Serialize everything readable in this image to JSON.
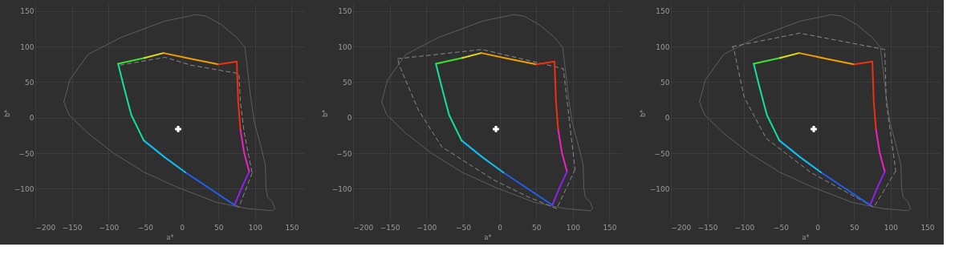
{
  "chart_data": [
    {
      "type": "line",
      "xlabel": "a*",
      "ylabel": "b*",
      "xlim": [
        -200,
        167
      ],
      "ylim": [
        -147,
        160
      ],
      "xticks": [
        -200,
        -150,
        -100,
        -50,
        0,
        50,
        100,
        150
      ],
      "yticks": [
        -100,
        -50,
        0,
        50,
        100,
        150
      ],
      "grid": true,
      "series": [
        {
          "color": "#5e5e5e",
          "line_style": "solid",
          "x": [
            -161,
            -153,
            -128,
            -83,
            -23,
            19,
            33,
            54,
            75,
            86,
            89,
            94,
            99,
            108,
            114,
            115,
            117,
            124,
            127
          ],
          "values": [
            22,
            53,
            89,
            113,
            136,
            145,
            143,
            131,
            113,
            99,
            74,
            29,
            -6,
            -41,
            -66,
            -99,
            -112,
            -119,
            -128
          ]
        },
        {
          "color": "#5e5e5e",
          "line_style": "solid",
          "x": [
            127,
            124,
            89,
            47,
            -6,
            -51,
            -93,
            -128,
            -154,
            -161
          ],
          "values": [
            -128,
            -131,
            -128,
            -119,
            -98,
            -77,
            -50,
            -22,
            4,
            22
          ]
        },
        {
          "color": "#8a8a8a",
          "line_style": "dashed",
          "x": [
            -84,
            -23,
            12,
            78,
            80,
            85,
            96
          ],
          "values": [
            74,
            85,
            74,
            62,
            22,
            -20,
            -78
          ]
        },
        {
          "color": "#8a8a8a",
          "line_style": "dashed",
          "x": [
            96,
            78,
            72
          ],
          "values": [
            -78,
            -126,
            -123
          ]
        },
        {
          "color": "#40e030",
          "line_style": "solid",
          "x": [
            -87,
            -51
          ],
          "values": [
            76,
            84
          ]
        },
        {
          "color": "#e0e010",
          "line_style": "solid",
          "x": [
            -51,
            -25
          ],
          "values": [
            84,
            91
          ]
        },
        {
          "color": "#f0a000",
          "line_style": "solid",
          "x": [
            -25,
            12,
            50
          ],
          "values": [
            91,
            83,
            75
          ]
        },
        {
          "color": "#f03010",
          "line_style": "solid",
          "x": [
            50,
            75,
            77,
            80
          ],
          "values": [
            75,
            79,
            22,
            -17
          ]
        },
        {
          "color": "#f020c0",
          "line_style": "solid",
          "x": [
            80,
            85,
            92
          ],
          "values": [
            -17,
            -49,
            -76
          ]
        },
        {
          "color": "#9020f0",
          "line_style": "solid",
          "x": [
            92,
            82,
            72
          ],
          "values": [
            -76,
            -98,
            -123
          ]
        },
        {
          "color": "#2060f0",
          "line_style": "solid",
          "x": [
            72,
            40,
            5
          ],
          "values": [
            -123,
            -101,
            -77
          ]
        },
        {
          "color": "#10c0f0",
          "line_style": "solid",
          "x": [
            5,
            -23,
            -52
          ],
          "values": [
            -77,
            -56,
            -32
          ]
        },
        {
          "color": "#10e0a0",
          "line_style": "solid",
          "x": [
            -52,
            -69,
            -79,
            -87
          ],
          "values": [
            -32,
            4,
            43,
            76
          ]
        },
        {
          "type": "scatter",
          "marker": "cross",
          "color": "#ffffff",
          "x": [
            -5
          ],
          "values": [
            -16
          ]
        }
      ]
    },
    {
      "type": "line",
      "xlabel": "a*",
      "ylabel": "b*",
      "xlim": [
        -200,
        167
      ],
      "ylim": [
        -147,
        160
      ],
      "xticks": [
        -200,
        -150,
        -100,
        -50,
        0,
        50,
        100,
        150
      ],
      "yticks": [
        -100,
        -50,
        0,
        50,
        100,
        150
      ],
      "grid": true,
      "series": [
        {
          "color": "#5e5e5e",
          "line_style": "solid",
          "x": [
            -161,
            -153,
            -128,
            -83,
            -23,
            19,
            33,
            54,
            75,
            86,
            89,
            94,
            99,
            108,
            114,
            115,
            117,
            124,
            127
          ],
          "values": [
            22,
            53,
            89,
            113,
            136,
            145,
            143,
            131,
            113,
            99,
            74,
            29,
            -6,
            -41,
            -66,
            -99,
            -112,
            -119,
            -128
          ]
        },
        {
          "color": "#5e5e5e",
          "line_style": "solid",
          "x": [
            127,
            124,
            89,
            47,
            -6,
            -51,
            -93,
            -128,
            -154,
            -161
          ],
          "values": [
            -128,
            -131,
            -128,
            -119,
            -98,
            -77,
            -50,
            -22,
            4,
            22
          ]
        },
        {
          "color": "#8a8a8a",
          "line_style": "dashed",
          "x": [
            -139,
            -24,
            87,
            103
          ],
          "values": [
            83,
            96,
            69,
            -73
          ]
        },
        {
          "color": "#8a8a8a",
          "line_style": "dashed",
          "x": [
            103,
            78,
            40,
            -9,
            -79,
            -111,
            -137,
            -139
          ],
          "values": [
            -73,
            -128,
            -112,
            -87,
            -41,
            11,
            74,
            83
          ]
        },
        {
          "color": "#40e030",
          "line_style": "solid",
          "x": [
            -87,
            -51
          ],
          "values": [
            76,
            84
          ]
        },
        {
          "color": "#e0e010",
          "line_style": "solid",
          "x": [
            -51,
            -25
          ],
          "values": [
            84,
            91
          ]
        },
        {
          "color": "#f0a000",
          "line_style": "solid",
          "x": [
            -25,
            12,
            50
          ],
          "values": [
            91,
            83,
            75
          ]
        },
        {
          "color": "#f03010",
          "line_style": "solid",
          "x": [
            50,
            75,
            77,
            80
          ],
          "values": [
            75,
            79,
            22,
            -17
          ]
        },
        {
          "color": "#f020c0",
          "line_style": "solid",
          "x": [
            80,
            85,
            92
          ],
          "values": [
            -17,
            -49,
            -76
          ]
        },
        {
          "color": "#9020f0",
          "line_style": "solid",
          "x": [
            92,
            82,
            72
          ],
          "values": [
            -76,
            -98,
            -123
          ]
        },
        {
          "color": "#2060f0",
          "line_style": "solid",
          "x": [
            72,
            40,
            5
          ],
          "values": [
            -123,
            -101,
            -77
          ]
        },
        {
          "color": "#10c0f0",
          "line_style": "solid",
          "x": [
            5,
            -23,
            -52
          ],
          "values": [
            -77,
            -56,
            -32
          ]
        },
        {
          "color": "#10e0a0",
          "line_style": "solid",
          "x": [
            -52,
            -69,
            -79,
            -87
          ],
          "values": [
            -32,
            4,
            43,
            76
          ]
        },
        {
          "type": "scatter",
          "marker": "cross",
          "color": "#ffffff",
          "x": [
            -5
          ],
          "values": [
            -16
          ]
        }
      ]
    },
    {
      "type": "line",
      "xlabel": "a*",
      "ylabel": "b*",
      "xlim": [
        -200,
        167
      ],
      "ylim": [
        -147,
        160
      ],
      "xticks": [
        -200,
        -150,
        -100,
        -50,
        0,
        50,
        100,
        150
      ],
      "yticks": [
        -100,
        -50,
        0,
        50,
        100,
        150
      ],
      "grid": true,
      "series": [
        {
          "color": "#5e5e5e",
          "line_style": "solid",
          "x": [
            -161,
            -153,
            -128,
            -83,
            -23,
            19,
            33,
            54,
            75,
            86,
            89,
            94,
            99,
            108,
            114,
            115,
            117,
            124,
            127
          ],
          "values": [
            22,
            53,
            89,
            113,
            136,
            145,
            143,
            131,
            113,
            99,
            74,
            29,
            -6,
            -41,
            -66,
            -99,
            -112,
            -119,
            -128
          ]
        },
        {
          "color": "#5e5e5e",
          "line_style": "solid",
          "x": [
            127,
            124,
            89,
            47,
            -6,
            -51,
            -93,
            -128,
            -154,
            -161
          ],
          "values": [
            -128,
            -131,
            -128,
            -119,
            -98,
            -77,
            -50,
            -22,
            4,
            22
          ]
        },
        {
          "color": "#8a8a8a",
          "line_style": "dashed",
          "x": [
            -116,
            -24,
            92,
            94,
            107
          ],
          "values": [
            100,
            119,
            96,
            22,
            -75
          ]
        },
        {
          "color": "#8a8a8a",
          "line_style": "dashed",
          "x": [
            107,
            77,
            33,
            -9,
            -70,
            -100,
            -114,
            -116
          ],
          "values": [
            -75,
            -126,
            -101,
            -77,
            -29,
            29,
            96,
            100
          ]
        },
        {
          "color": "#40e030",
          "line_style": "solid",
          "x": [
            -87,
            -51
          ],
          "values": [
            76,
            84
          ]
        },
        {
          "color": "#e0e010",
          "line_style": "solid",
          "x": [
            -51,
            -25
          ],
          "values": [
            84,
            91
          ]
        },
        {
          "color": "#f0a000",
          "line_style": "solid",
          "x": [
            -25,
            12,
            50
          ],
          "values": [
            91,
            83,
            75
          ]
        },
        {
          "color": "#f03010",
          "line_style": "solid",
          "x": [
            50,
            75,
            77,
            80
          ],
          "values": [
            75,
            79,
            22,
            -17
          ]
        },
        {
          "color": "#f020c0",
          "line_style": "solid",
          "x": [
            80,
            85,
            92
          ],
          "values": [
            -17,
            -49,
            -76
          ]
        },
        {
          "color": "#9020f0",
          "line_style": "solid",
          "x": [
            92,
            82,
            72
          ],
          "values": [
            -76,
            -98,
            -123
          ]
        },
        {
          "color": "#2060f0",
          "line_style": "solid",
          "x": [
            72,
            40,
            5
          ],
          "values": [
            -123,
            -101,
            -77
          ]
        },
        {
          "color": "#10c0f0",
          "line_style": "solid",
          "x": [
            5,
            -23,
            -52
          ],
          "values": [
            -77,
            -56,
            -32
          ]
        },
        {
          "color": "#10e0a0",
          "line_style": "solid",
          "x": [
            -52,
            -69,
            -79,
            -87
          ],
          "values": [
            -32,
            4,
            43,
            76
          ]
        },
        {
          "type": "scatter",
          "marker": "cross",
          "color": "#ffffff",
          "x": [
            -5
          ],
          "values": [
            -16
          ]
        }
      ]
    }
  ]
}
